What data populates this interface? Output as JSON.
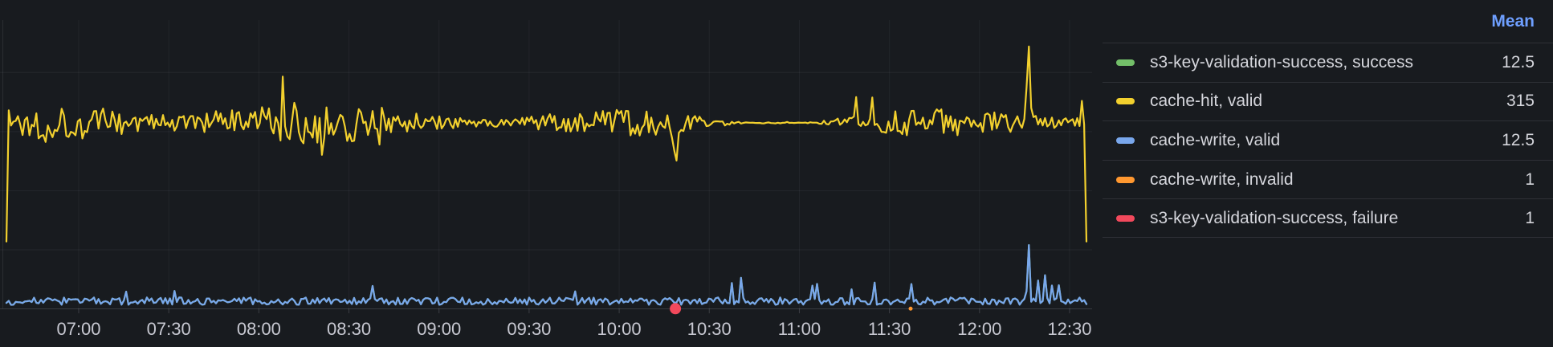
{
  "panel": {
    "background": "#181b1f"
  },
  "legend": {
    "header": {
      "label": "Mean",
      "color": "#6e9fff"
    },
    "rows": [
      {
        "name": "s3-key-validation-success, success",
        "mean": "12.5",
        "color": "#73bf69"
      },
      {
        "name": "cache-hit, valid",
        "mean": "315",
        "color": "#f2d02e"
      },
      {
        "name": "cache-write, valid",
        "mean": "12.5",
        "color": "#79a7ec"
      },
      {
        "name": "cache-write, invalid",
        "mean": "1",
        "color": "#ff9830"
      },
      {
        "name": "s3-key-validation-success, failure",
        "mean": "1",
        "color": "#f2495c"
      }
    ]
  },
  "chart_data": {
    "type": "line",
    "title": "",
    "xlabel": "",
    "ylabel": "",
    "x_tick_labels": [
      "07:00",
      "07:30",
      "08:00",
      "08:30",
      "09:00",
      "09:30",
      "10:00",
      "10:30",
      "11:00",
      "11:30",
      "12:00",
      "12:30"
    ],
    "x_tick_minutes": 30,
    "y_axis": {
      "min": 0,
      "max": 490,
      "gridline_values": [
        100,
        200,
        300,
        400
      ],
      "tick_labels_visible": false
    },
    "grid": true,
    "legend_position": "right",
    "series": [
      {
        "name": "s3-key-validation-success, success",
        "color": "#73bf69",
        "mean": 12.5,
        "overlaps_with": "cache-write, valid",
        "note": "identical values to cache-write valid; completely hidden beneath the blue line"
      },
      {
        "name": "cache-hit, valid",
        "color": "#f2d02e",
        "mean": 315,
        "seed": 1337,
        "n": 470,
        "base": 315,
        "amp_main": 30,
        "amp_mod": [
          0.62,
          0.38,
          0.048,
          1.2
        ],
        "amp_mod2": [
          9,
          0.013,
          0.5
        ],
        "spike_chance": 0.988,
        "spike_min": 28,
        "spike_var": 26,
        "spike_sign": 0,
        "features": [
          {
            "t": 0.0,
            "v": 114
          },
          {
            "t": 0.6165,
            "v": 290
          },
          {
            "t": 0.6185,
            "v": 268
          },
          {
            "t": 0.6208,
            "v": 251
          },
          {
            "t": 0.623,
            "v": 298
          },
          {
            "t": 0.9443,
            "v": 375
          },
          {
            "t": 0.9465,
            "v": 444
          },
          {
            "t": 0.9487,
            "v": 340
          },
          {
            "t": 0.9958,
            "v": 352
          },
          {
            "t": 1.0,
            "v": 114
          }
        ]
      },
      {
        "name": "cache-write, valid",
        "color": "#79a7ec",
        "mean": 12.5,
        "seed": 99,
        "n": 470,
        "base": 13,
        "amp_main": 6.2,
        "spike_chance": 0.978,
        "spike_min": 12,
        "spike_var": 22,
        "spike_sign": 1,
        "min": 3.5,
        "features": [
          {
            "t": 0.782,
            "v": 33
          },
          {
            "t": 0.8372,
            "v": 42
          },
          {
            "t": 0.9443,
            "v": 30
          },
          {
            "t": 0.9465,
            "v": 108
          },
          {
            "t": 0.9551,
            "v": 48
          },
          {
            "t": 0.962,
            "v": 57
          },
          {
            "t": 0.9743,
            "v": 40
          },
          {
            "t": 1.0,
            "v": 8
          }
        ]
      },
      {
        "name": "cache-write, invalid",
        "color": "#ff9830",
        "mean": 1,
        "points": [
          {
            "t": 0.8372,
            "v": 1,
            "marker_radius": 2.5
          }
        ]
      },
      {
        "name": "s3-key-validation-success, failure",
        "color": "#f2495c",
        "mean": 1,
        "points": [
          {
            "t": 0.6194,
            "v": 1,
            "marker_radius": 7
          }
        ]
      }
    ]
  }
}
